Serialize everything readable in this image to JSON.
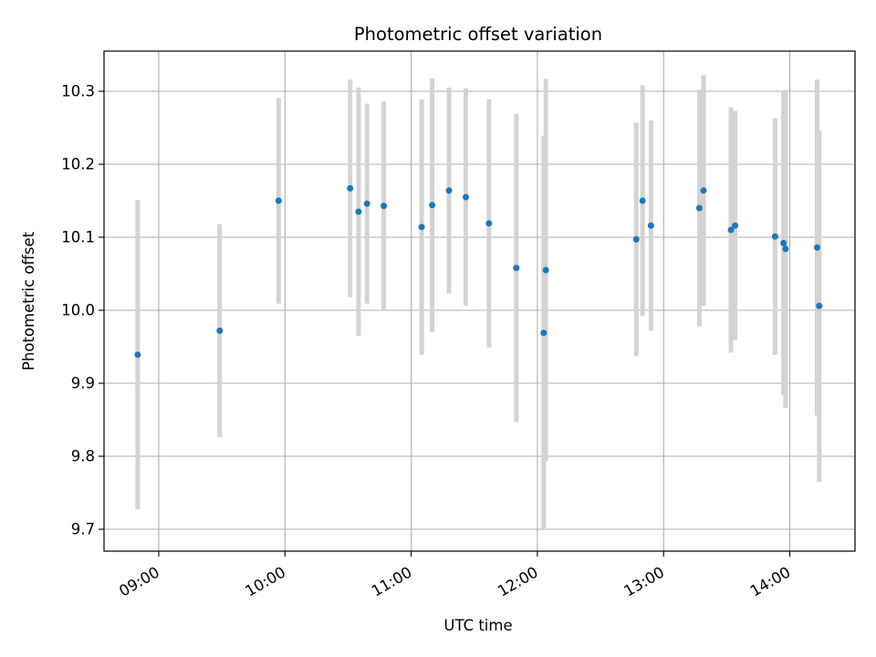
{
  "chart_data": {
    "type": "scatter",
    "title": "Photometric offset variation",
    "xlabel": "UTC time",
    "ylabel": "Photometric offset",
    "xlim": [
      "08:34",
      "14:31"
    ],
    "ylim": [
      9.67,
      10.355
    ],
    "grid": true,
    "x_ticks": [
      "09:00",
      "10:00",
      "11:00",
      "12:00",
      "13:00",
      "14:00"
    ],
    "y_ticks": [
      9.7,
      9.8,
      9.9,
      10.0,
      10.1,
      10.2,
      10.3
    ],
    "marker_color": "#1f77b4",
    "errorbar_color": "#d3d3d3",
    "points": [
      {
        "x": "08:50",
        "y": 9.939,
        "yerr": 0.212
      },
      {
        "x": "09:29",
        "y": 9.972,
        "yerr": 0.146
      },
      {
        "x": "09:57",
        "y": 10.15,
        "yerr": 0.141
      },
      {
        "x": "10:31",
        "y": 10.167,
        "yerr": 0.149
      },
      {
        "x": "10:35",
        "y": 10.135,
        "yerr": 0.17
      },
      {
        "x": "10:39",
        "y": 10.146,
        "yerr": 0.137
      },
      {
        "x": "10:47",
        "y": 10.143,
        "yerr": 0.143
      },
      {
        "x": "11:05",
        "y": 10.114,
        "yerr": 0.175
      },
      {
        "x": "11:10",
        "y": 10.144,
        "yerr": 0.174
      },
      {
        "x": "11:18",
        "y": 10.164,
        "yerr": 0.141
      },
      {
        "x": "11:26",
        "y": 10.155,
        "yerr": 0.149
      },
      {
        "x": "11:37",
        "y": 10.119,
        "yerr": 0.17
      },
      {
        "x": "11:50",
        "y": 10.058,
        "yerr": 0.211
      },
      {
        "x": "12:03",
        "y": 9.969,
        "yerr": 0.27
      },
      {
        "x": "12:04",
        "y": 10.055,
        "yerr": 0.262
      },
      {
        "x": "12:47",
        "y": 10.097,
        "yerr": 0.16
      },
      {
        "x": "12:50",
        "y": 10.15,
        "yerr": 0.158
      },
      {
        "x": "12:54",
        "y": 10.116,
        "yerr": 0.144
      },
      {
        "x": "13:17",
        "y": 10.14,
        "yerr": 0.162
      },
      {
        "x": "13:19",
        "y": 10.164,
        "yerr": 0.158
      },
      {
        "x": "13:32",
        "y": 10.11,
        "yerr": 0.168
      },
      {
        "x": "13:34",
        "y": 10.116,
        "yerr": 0.157
      },
      {
        "x": "13:53",
        "y": 10.101,
        "yerr": 0.162
      },
      {
        "x": "13:57",
        "y": 10.092,
        "yerr": 0.208
      },
      {
        "x": "13:58",
        "y": 10.084,
        "yerr": 0.218
      },
      {
        "x": "14:13",
        "y": 10.086,
        "yerr": 0.23
      },
      {
        "x": "14:14",
        "y": 10.006,
        "yerr": 0.241
      }
    ]
  }
}
